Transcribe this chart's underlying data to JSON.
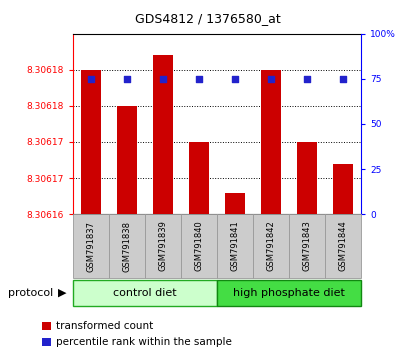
{
  "title": "GDS4812 / 1376580_at",
  "samples": [
    "GSM791837",
    "GSM791838",
    "GSM791839",
    "GSM791840",
    "GSM791841",
    "GSM791842",
    "GSM791843",
    "GSM791844"
  ],
  "bar_values": [
    8.30618,
    8.306175,
    8.306182,
    8.30617,
    8.306163,
    8.30618,
    8.30617,
    8.306167
  ],
  "percentile_values": [
    75,
    75,
    75,
    75,
    75,
    75,
    75,
    75
  ],
  "ymin": 8.30616,
  "ymax": 8.306185,
  "left_tick_positions": [
    8.30616,
    8.306165,
    8.30617,
    8.306175,
    8.30618
  ],
  "left_tick_labels": [
    "8.30616",
    "8.30617",
    "8.30617",
    "8.30618",
    "8.30618"
  ],
  "right_ticks": [
    0,
    25,
    50,
    75,
    100
  ],
  "right_tick_labels": [
    "0",
    "25",
    "50",
    "75",
    "100%"
  ],
  "bar_color": "#cc0000",
  "dot_color": "#2222cc",
  "bar_width": 0.55,
  "control_label": "control diet",
  "high_label": "high phosphate diet",
  "control_color": "#ccffcc",
  "high_color": "#44dd44",
  "control_edge": "#22aa22",
  "high_edge": "#118811",
  "protocol_label": "protocol",
  "legend_bar_label": "transformed count",
  "legend_dot_label": "percentile rank within the sample",
  "xtick_box_color": "#cccccc",
  "xtick_box_edge": "#999999",
  "grid_color": "#000000",
  "grid_linestyle": ":",
  "grid_linewidth": 0.7,
  "title_fontsize": 9,
  "tick_fontsize": 6.5,
  "label_fontsize": 7.5,
  "sample_fontsize": 6
}
